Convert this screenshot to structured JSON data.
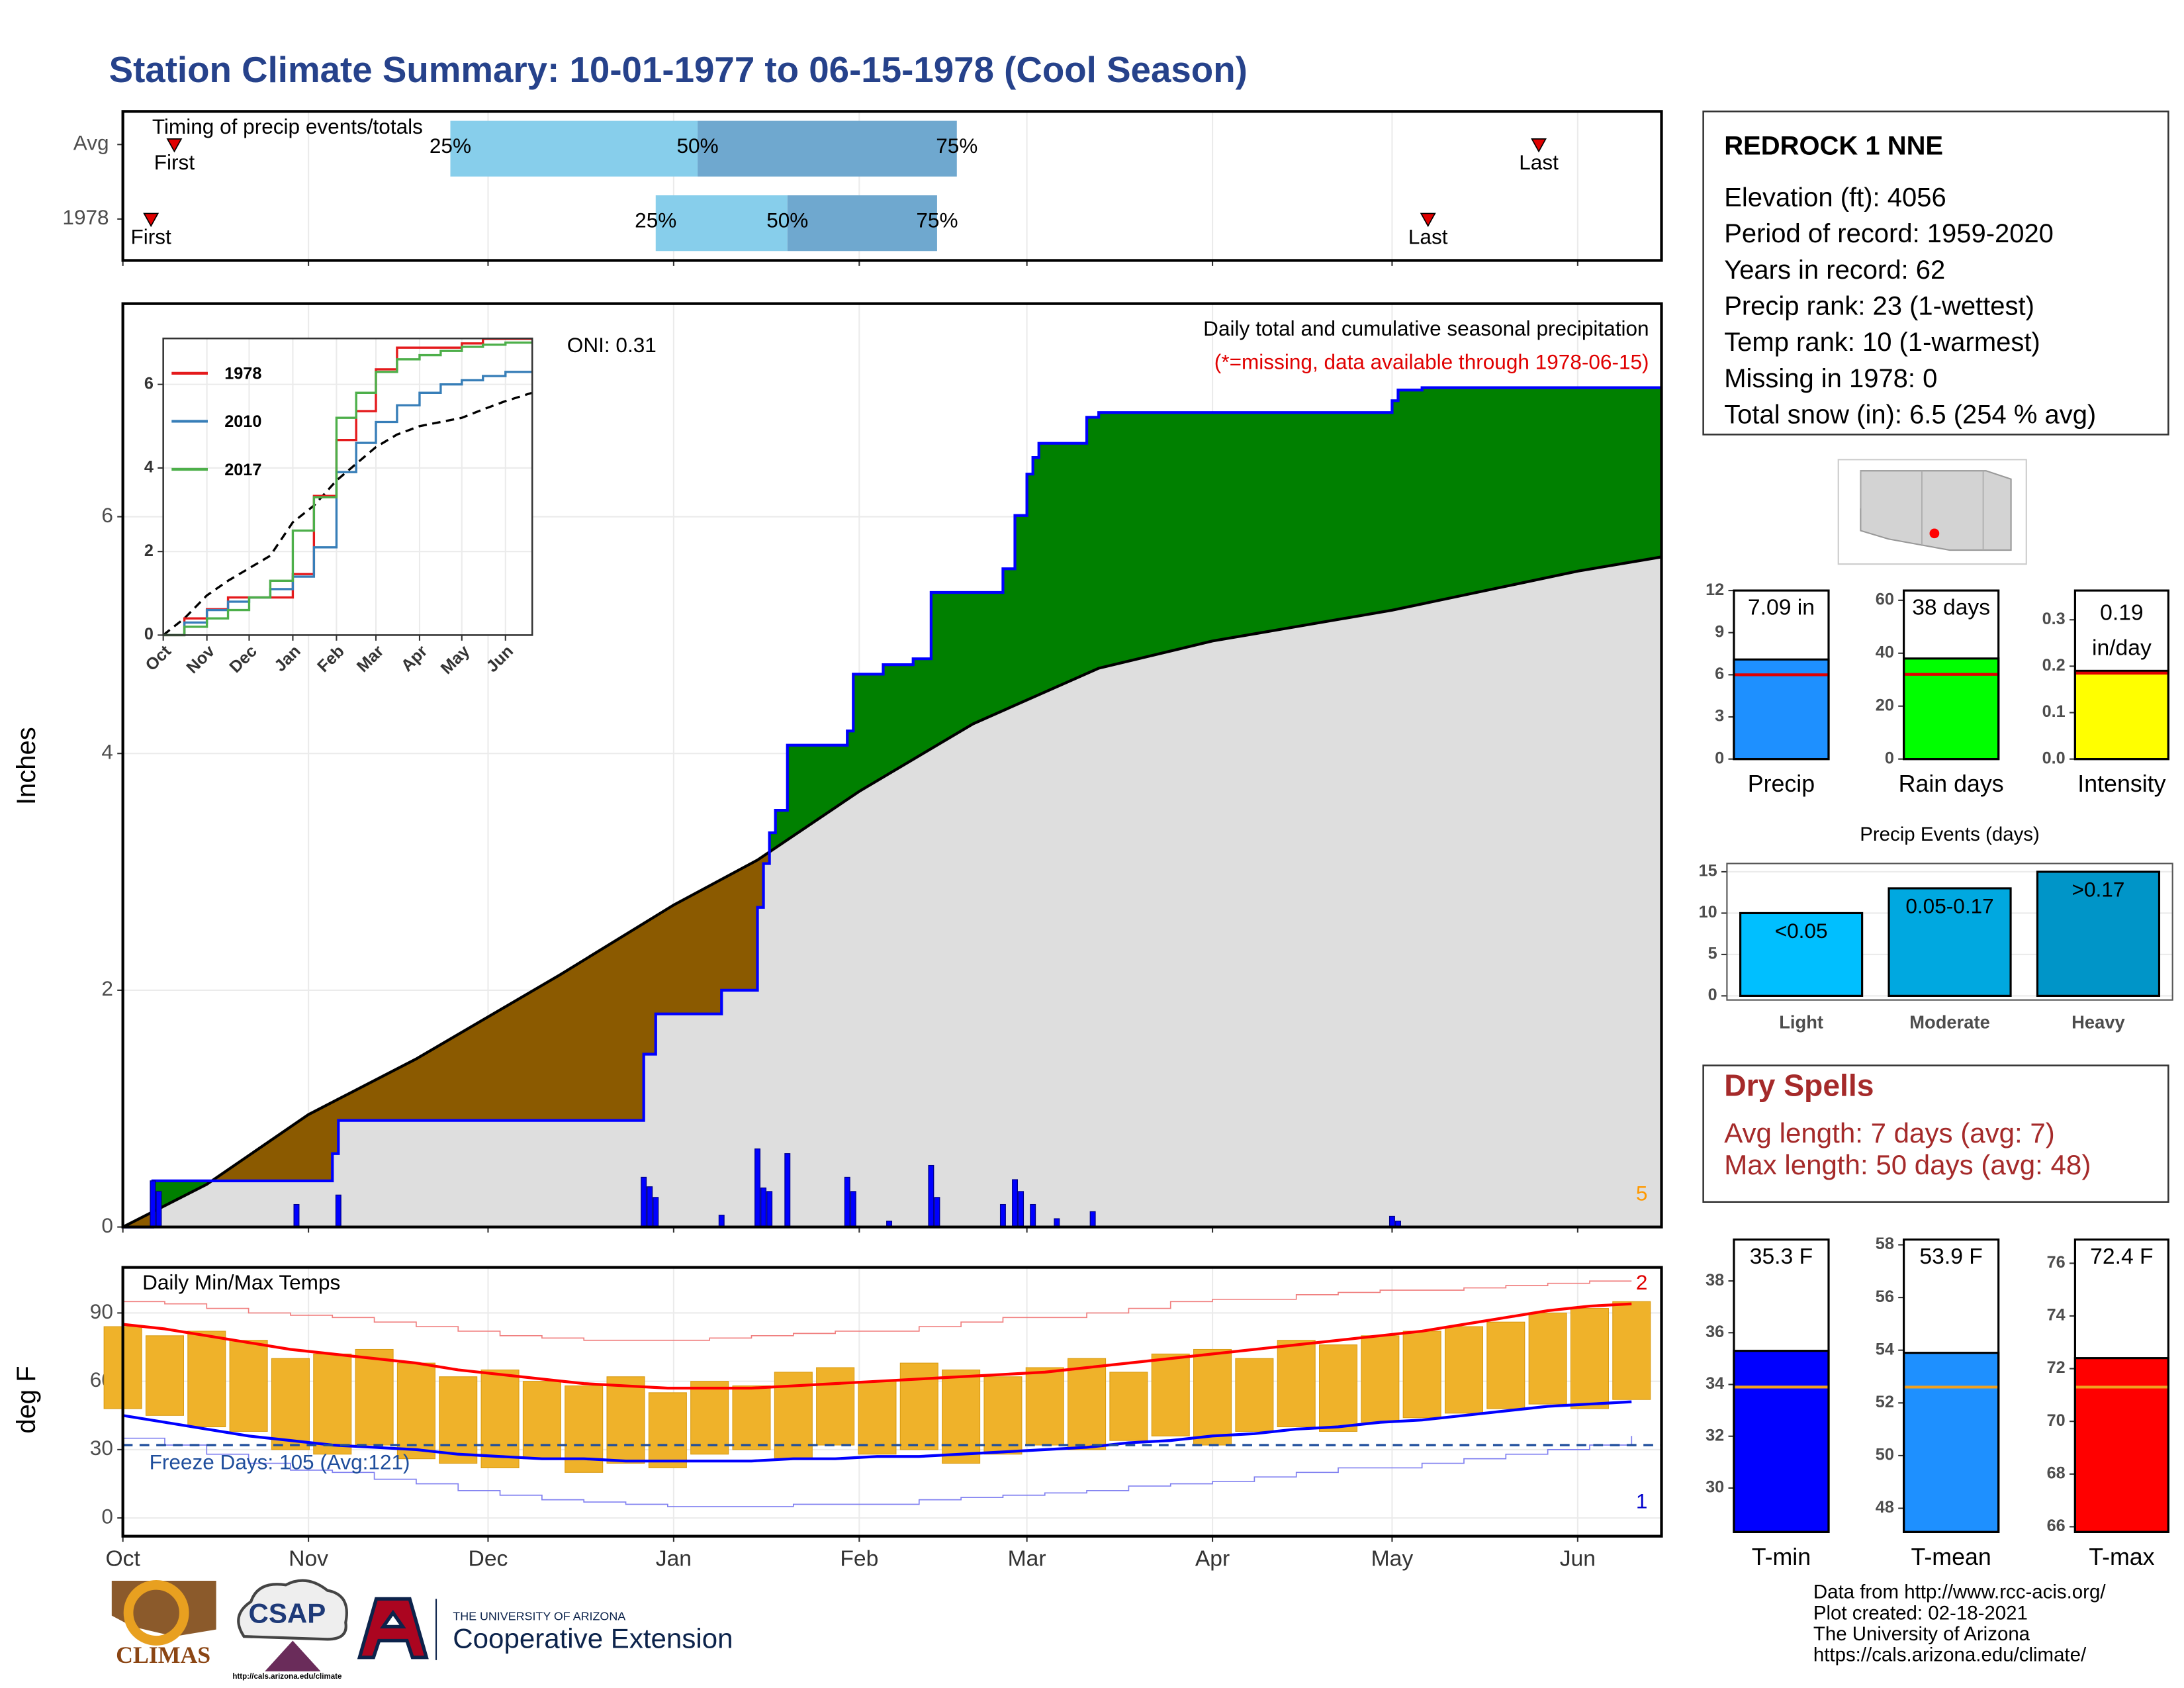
{
  "title": "Station Climate Summary: 10-01-1977 to 06-15-1978 (Cool Season)",
  "chart_data": [
    {
      "type": "timing",
      "title": "Timing of precip events/totals",
      "categories": [
        "Avg",
        "1978"
      ],
      "first": [
        8.6,
        4.7
      ],
      "q25": [
        54.7,
        89
      ],
      "q50": [
        96,
        111
      ],
      "q75": [
        139.3,
        136
      ],
      "last": [
        236.5,
        218
      ],
      "first_label": "First",
      "last_label": "Last",
      "quantile_labels": [
        "25%",
        "50%",
        "75%"
      ],
      "lower_color": "#87ceeb",
      "upper_color": "#6fa8cf",
      "marker_color": "#e00000",
      "xlim": [
        0,
        257
      ],
      "xticks": [
        0,
        31,
        61,
        92,
        123,
        151,
        182,
        212,
        243
      ],
      "grid": true
    },
    {
      "type": "cumulative",
      "title": "Daily total and cumulative seasonal precipitation",
      "subtitle": "(*=missing, data available through 1978-06-15)",
      "annotation": "ONI: 0.31",
      "corner_label": "5",
      "y_label": "Inches",
      "xlim": [
        0,
        257
      ],
      "xticks": [
        0,
        31,
        61,
        92,
        123,
        151,
        182,
        212,
        243
      ],
      "ylim": [
        0,
        7.8
      ],
      "yticks": [
        0,
        2,
        4,
        6
      ],
      "grid": true,
      "cumulative": {
        "color": "#0000ff",
        "x": [
          0,
          5,
          35,
          36,
          87,
          89,
          100,
          106,
          107,
          108,
          109,
          111,
          121,
          122,
          127,
          132,
          135,
          147,
          149,
          151,
          152,
          153,
          161,
          163,
          212,
          213,
          217,
          257
        ],
        "values": [
          0,
          0.39,
          0.62,
          0.9,
          1.46,
          1.8,
          2.0,
          2.7,
          3.07,
          3.33,
          3.52,
          4.07,
          4.19,
          4.67,
          4.75,
          4.8,
          5.36,
          5.56,
          6.01,
          6.36,
          6.5,
          6.62,
          6.84,
          6.88,
          6.98,
          7.07,
          7.09,
          7.09
        ]
      },
      "average": {
        "color": "#000000",
        "x": [
          0,
          14,
          31,
          49,
          73,
          92,
          106,
          123,
          142,
          163,
          182,
          212,
          243,
          257
        ],
        "values": [
          0,
          0.36,
          0.95,
          1.42,
          2.13,
          2.72,
          3.1,
          3.68,
          4.25,
          4.72,
          4.95,
          5.21,
          5.54,
          5.66
        ]
      },
      "daily": {
        "color": "#0000ff",
        "x": [
          5,
          6,
          29,
          36,
          87,
          88,
          89,
          100,
          106,
          107,
          108,
          111,
          121,
          122,
          128,
          135,
          136,
          147,
          149,
          150,
          152,
          156,
          162,
          212,
          213
        ],
        "values": [
          0.39,
          0.3,
          0.19,
          0.27,
          0.42,
          0.34,
          0.25,
          0.1,
          0.66,
          0.33,
          0.3,
          0.62,
          0.42,
          0.3,
          0.05,
          0.52,
          0.25,
          0.19,
          0.4,
          0.3,
          0.19,
          0.07,
          0.13,
          0.09,
          0.05
        ]
      },
      "above_color": "#008000",
      "below_color": "#8b5a00",
      "base_color": "#dedede"
    },
    {
      "type": "line",
      "xlim": [
        0,
        262
      ],
      "ylim": [
        0,
        7.1
      ],
      "yticks": [
        0,
        2,
        4,
        6
      ],
      "grid": true,
      "xticks": [
        {
          "value": 0,
          "label": "Oct"
        },
        {
          "value": 31,
          "label": "Nov"
        },
        {
          "value": 61,
          "label": "Dec"
        },
        {
          "value": 92,
          "label": "Jan"
        },
        {
          "value": 123,
          "label": "Feb"
        },
        {
          "value": 151,
          "label": "Mar"
        },
        {
          "value": 182,
          "label": "Apr"
        },
        {
          "value": 212,
          "label": "May"
        },
        {
          "value": 243,
          "label": "Jun"
        }
      ],
      "x": [
        0,
        15,
        31,
        46,
        61,
        76,
        92,
        107,
        123,
        137,
        151,
        166,
        182,
        197,
        212,
        227,
        243,
        262
      ],
      "series": [
        {
          "name": "1978",
          "color": "#e41a1c",
          "values": [
            0,
            0.4,
            0.62,
            0.9,
            0.9,
            0.9,
            1.46,
            3.33,
            4.67,
            5.36,
            6.36,
            6.88,
            6.88,
            6.88,
            6.98,
            7.09,
            7.09,
            7.09
          ]
        },
        {
          "name": "2010",
          "color": "#377eb8",
          "values": [
            0,
            0.3,
            0.6,
            0.8,
            0.9,
            1.1,
            1.4,
            2.1,
            3.9,
            4.6,
            5.1,
            5.5,
            5.8,
            6.0,
            6.1,
            6.2,
            6.3,
            6.3
          ]
        },
        {
          "name": "2017",
          "color": "#4daf4a",
          "values": [
            0,
            0.2,
            0.4,
            0.6,
            0.9,
            1.3,
            2.5,
            3.3,
            5.2,
            5.8,
            6.3,
            6.6,
            6.7,
            6.8,
            6.9,
            6.95,
            7.0,
            7.0
          ]
        }
      ],
      "average": {
        "color": "#000000",
        "values": [
          0,
          0.4,
          0.95,
          1.3,
          1.6,
          1.9,
          2.7,
          3.1,
          3.7,
          4.1,
          4.5,
          4.8,
          5.0,
          5.1,
          5.2,
          5.4,
          5.6,
          5.8
        ]
      }
    },
    {
      "type": "temps",
      "title": "Daily Min/Max Temps",
      "annotation": "Freeze Days: 105 (Avg:121)",
      "max_label": "2",
      "min_label": "1",
      "y_label": "deg F",
      "xlim": [
        0,
        257
      ],
      "ylim": [
        -8,
        110
      ],
      "yticks": [
        0,
        30,
        60,
        90
      ],
      "grid": true,
      "xticks": [
        {
          "value": 0,
          "label": "Oct"
        },
        {
          "value": 31,
          "label": "Nov"
        },
        {
          "value": 61,
          "label": "Dec"
        },
        {
          "value": 92,
          "label": "Jan"
        },
        {
          "value": 123,
          "label": "Feb"
        },
        {
          "value": 151,
          "label": "Mar"
        },
        {
          "value": 182,
          "label": "Apr"
        },
        {
          "value": 212,
          "label": "May"
        },
        {
          "value": 243,
          "label": "Jun"
        }
      ],
      "x": [
        0,
        7,
        14,
        21,
        28,
        35,
        42,
        49,
        56,
        63,
        70,
        77,
        84,
        91,
        98,
        105,
        112,
        119,
        126,
        133,
        140,
        147,
        154,
        161,
        168,
        175,
        182,
        189,
        196,
        203,
        210,
        217,
        224,
        231,
        238,
        245,
        252
      ],
      "bar_color": "#efb22a",
      "freeze_line": 32,
      "freeze_color": "#1f4e9c",
      "tmax": {
        "values": [
          84,
          80,
          82,
          78,
          70,
          72,
          74,
          68,
          62,
          65,
          60,
          58,
          62,
          55,
          60,
          58,
          64,
          66,
          60,
          68,
          65,
          62,
          66,
          70,
          64,
          72,
          74,
          70,
          78,
          76,
          80,
          82,
          84,
          86,
          90,
          92,
          95
        ]
      },
      "tmin": {
        "values": [
          48,
          45,
          40,
          38,
          30,
          28,
          32,
          26,
          24,
          22,
          26,
          20,
          24,
          22,
          28,
          30,
          26,
          32,
          28,
          30,
          24,
          28,
          32,
          30,
          34,
          36,
          32,
          38,
          40,
          38,
          42,
          44,
          46,
          48,
          50,
          48,
          52
        ]
      },
      "avg_max": {
        "color": "#ff0000",
        "values": [
          85,
          83,
          80,
          77,
          74,
          72,
          70,
          68,
          65,
          63,
          61,
          59,
          58,
          57,
          57,
          57,
          58,
          59,
          60,
          61,
          62,
          63,
          64,
          66,
          68,
          70,
          72,
          74,
          76,
          78,
          80,
          82,
          85,
          88,
          91,
          93,
          94
        ]
      },
      "avg_min": {
        "color": "#0000ff",
        "values": [
          45,
          42,
          39,
          36,
          34,
          32,
          31,
          30,
          28,
          27,
          26,
          26,
          25,
          25,
          25,
          25,
          26,
          26,
          27,
          27,
          28,
          29,
          30,
          31,
          33,
          34,
          36,
          37,
          39,
          40,
          42,
          43,
          45,
          47,
          49,
          50,
          51
        ]
      },
      "record_max": {
        "color": "#f08080",
        "values": [
          95,
          94,
          92,
          90,
          89,
          88,
          86,
          84,
          82,
          80,
          79,
          78,
          78,
          78,
          79,
          80,
          81,
          82,
          82,
          84,
          86,
          88,
          88,
          90,
          92,
          95,
          96,
          96,
          98,
          99,
          100,
          100,
          101,
          102,
          103,
          104,
          104
        ]
      },
      "record_min": {
        "color": "#8080f0",
        "values": [
          35,
          32,
          28,
          24,
          21,
          20,
          17,
          15,
          12,
          10,
          8,
          7,
          6,
          5,
          5,
          5,
          6,
          6,
          6,
          8,
          9,
          10,
          11,
          12,
          14,
          15,
          16,
          18,
          20,
          22,
          22,
          24,
          26,
          28,
          30,
          32,
          36
        ]
      }
    },
    {
      "type": "bar",
      "categories": [
        "Precip"
      ],
      "values": [
        7.09
      ],
      "value_labels": [
        "7.09 in"
      ],
      "reference": [
        6.0
      ],
      "color": "#1e90ff",
      "reference_color": "#e00000",
      "ylim": [
        0,
        12
      ],
      "yticks": [
        0,
        3,
        6,
        9,
        12
      ]
    },
    {
      "type": "bar",
      "categories": [
        "Rain days"
      ],
      "values": [
        38
      ],
      "value_labels": [
        "38 days"
      ],
      "reference": [
        32
      ],
      "color": "#00ff00",
      "reference_color": "#e00000",
      "ylim": [
        0,
        63.7
      ],
      "yticks": [
        0,
        20,
        40,
        60
      ]
    },
    {
      "type": "bar",
      "categories": [
        "Intensity"
      ],
      "values": [
        0.19
      ],
      "value_labels": [
        "0.19"
      ],
      "unit_label": "in/day",
      "reference": [
        0.185
      ],
      "color": "#ffff00",
      "reference_color": "#e00000",
      "ylim": [
        0,
        0.363
      ],
      "yticks": [
        {
          "value": 0,
          "label": "0.0"
        },
        0.1,
        0.2,
        0.3
      ]
    },
    {
      "type": "bar",
      "title": "Precip Events (days)",
      "categories": [
        "Light",
        "Moderate",
        "Heavy"
      ],
      "values": [
        10,
        13,
        15
      ],
      "bin_labels": [
        "<0.05",
        "0.05-0.17",
        ">0.17"
      ],
      "colors": [
        "#00bfff",
        "#00a8e0",
        "#0095c8"
      ],
      "ylim": [
        -0.5,
        16
      ],
      "yticks": [
        0,
        5,
        10,
        15
      ],
      "grid": true
    },
    {
      "type": "bar",
      "categories": [
        "T-min"
      ],
      "values": [
        35.3
      ],
      "value_labels": [
        "35.3 F"
      ],
      "reference": [
        33.9
      ],
      "color": "#0000ff",
      "reference_color": "#f0a020",
      "ylim": [
        28.3,
        39.6
      ],
      "yticks": [
        30,
        32,
        34,
        36,
        38
      ]
    },
    {
      "type": "bar",
      "categories": [
        "T-mean"
      ],
      "values": [
        53.9
      ],
      "value_labels": [
        "53.9 F"
      ],
      "reference": [
        52.6
      ],
      "color": "#1e90ff",
      "reference_color": "#f0a020",
      "ylim": [
        47.1,
        58.2
      ],
      "yticks": [
        48,
        50,
        52,
        54,
        56,
        58
      ]
    },
    {
      "type": "bar",
      "categories": [
        "T-max"
      ],
      "values": [
        72.4
      ],
      "value_labels": [
        "72.4 F"
      ],
      "reference": [
        71.3
      ],
      "color": "#ff0000",
      "reference_color": "#f0a020",
      "ylim": [
        65.8,
        76.9
      ],
      "yticks": [
        66,
        68,
        70,
        72,
        74,
        76
      ]
    }
  ],
  "station": {
    "name": "REDROCK 1 NNE",
    "lines": [
      "Elevation (ft): 4056",
      "Period of record: 1959-2020",
      "Years in record: 62",
      "Precip rank: 23 (1-wettest)",
      "Temp rank: 10 (1-warmest)",
      "Missing in 1978: 0",
      "Total snow (in): 6.5 (254 % avg)"
    ]
  },
  "dry_spells": {
    "title": "Dry Spells",
    "lines": [
      "Avg length: 7 days (avg: 7)",
      "Max length: 50 days (avg: 48)"
    ]
  },
  "footer": {
    "lines": [
      "Data from http://www.rcc-acis.org/",
      "Plot created: 02-18-2021",
      "The University of Arizona",
      "https://cals.arizona.edu/climate/"
    ]
  },
  "logos": {
    "climas": "CLIMAS",
    "csap": "CSAP",
    "csap_url": "http://cals.arizona.edu/climate",
    "ua_line1": "THE UNIVERSITY OF ARIZONA",
    "ua_line2": "Cooperative Extension"
  }
}
